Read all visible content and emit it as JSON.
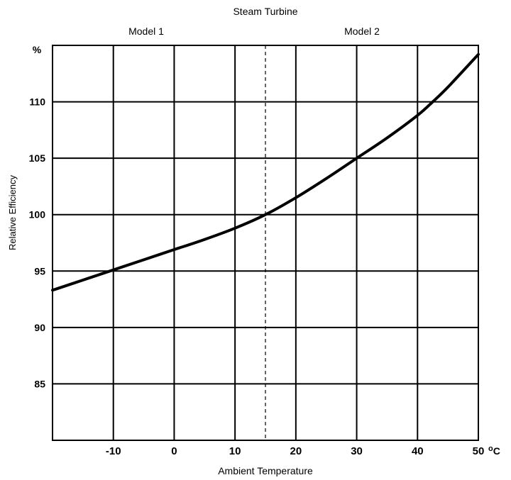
{
  "chart_data": {
    "type": "line",
    "title": "Steam Turbine",
    "region_labels": [
      "Model 1",
      "Model 2"
    ],
    "xlabel": "Ambient Temperature",
    "ylabel": "Relative Efficiency",
    "x_unit": "oC",
    "y_unit": "%",
    "xlim": [
      -20,
      50
    ],
    "ylim": [
      80,
      115
    ],
    "x_ticks": [
      -10,
      0,
      10,
      20,
      30,
      40,
      50
    ],
    "x_tick_labels": [
      "-10",
      "0",
      "10",
      "20",
      "30",
      "40",
      "50"
    ],
    "y_ticks": [
      85,
      90,
      95,
      100,
      105,
      110
    ],
    "y_tick_labels": [
      "85",
      "90",
      "95",
      "100",
      "105",
      "110"
    ],
    "divider_x": 15,
    "grid": true,
    "series": [
      {
        "x": [
          -20,
          -15,
          -10,
          -5,
          0,
          5,
          10,
          15,
          20,
          25,
          30,
          35,
          40,
          42.5,
          45,
          50
        ],
        "values": [
          93.3,
          94.2,
          95.1,
          96.0,
          96.9,
          97.8,
          98.8,
          100.0,
          101.5,
          103.2,
          105.0,
          106.8,
          108.8,
          110.0,
          111.3,
          114.2
        ]
      }
    ]
  }
}
